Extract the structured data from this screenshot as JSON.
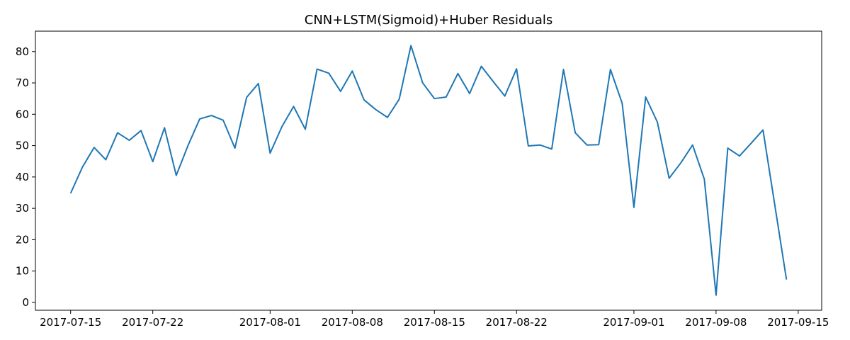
{
  "chart_data": {
    "type": "line",
    "title": "CNN+LSTM(Sigmoid)+Huber Residuals",
    "xlabel": "",
    "ylabel": "",
    "x_axis_type": "date",
    "xlim": [
      "2017-07-12",
      "2017-09-17"
    ],
    "ylim": [
      -2.5,
      86.5
    ],
    "x_ticks": [
      "2017-07-15",
      "2017-07-22",
      "2017-08-01",
      "2017-08-08",
      "2017-08-15",
      "2017-08-22",
      "2017-09-01",
      "2017-09-08",
      "2017-09-15"
    ],
    "y_ticks": [
      0,
      10,
      20,
      30,
      40,
      50,
      60,
      70,
      80
    ],
    "grid": false,
    "legend": "none",
    "line_color": "#1f77b4",
    "series": [
      {
        "x": [
          "2017-07-15",
          "2017-07-16",
          "2017-07-17",
          "2017-07-18",
          "2017-07-19",
          "2017-07-20",
          "2017-07-21",
          "2017-07-22",
          "2017-07-23",
          "2017-07-24",
          "2017-07-25",
          "2017-07-26",
          "2017-07-27",
          "2017-07-28",
          "2017-07-29",
          "2017-07-30",
          "2017-07-31",
          "2017-08-01",
          "2017-08-02",
          "2017-08-03",
          "2017-08-04",
          "2017-08-05",
          "2017-08-06",
          "2017-08-07",
          "2017-08-08",
          "2017-08-09",
          "2017-08-10",
          "2017-08-11",
          "2017-08-12",
          "2017-08-13",
          "2017-08-14",
          "2017-08-15",
          "2017-08-16",
          "2017-08-17",
          "2017-08-18",
          "2017-08-19",
          "2017-08-20",
          "2017-08-21",
          "2017-08-22",
          "2017-08-23",
          "2017-08-24",
          "2017-08-25",
          "2017-08-26",
          "2017-08-27",
          "2017-08-28",
          "2017-08-29",
          "2017-08-30",
          "2017-08-31",
          "2017-09-01",
          "2017-09-02",
          "2017-09-03",
          "2017-09-04",
          "2017-09-05",
          "2017-09-06",
          "2017-09-07",
          "2017-09-08",
          "2017-09-09",
          "2017-09-10",
          "2017-09-11",
          "2017-09-12",
          "2017-09-13",
          "2017-09-14"
        ],
        "y": [
          34.8,
          43.1,
          49.4,
          45.5,
          54.1,
          51.7,
          54.8,
          44.9,
          55.7,
          40.5,
          50.0,
          58.5,
          59.6,
          58.1,
          49.2,
          65.4,
          69.8,
          47.6,
          56.0,
          62.5,
          55.2,
          74.4,
          73.1,
          67.3,
          73.8,
          64.6,
          61.5,
          59.0,
          64.8,
          81.9,
          70.0,
          65.0,
          65.5,
          73.0,
          66.6,
          75.3,
          70.5,
          65.8,
          74.5,
          49.9,
          50.2,
          48.9,
          74.3,
          54.1,
          50.2,
          50.3,
          74.3,
          63.5,
          30.3,
          65.5,
          57.5,
          39.6,
          44.5,
          50.2,
          39.3,
          2.3,
          49.2,
          46.7,
          50.8,
          55.0,
          31.2,
          7.3
        ]
      }
    ]
  }
}
